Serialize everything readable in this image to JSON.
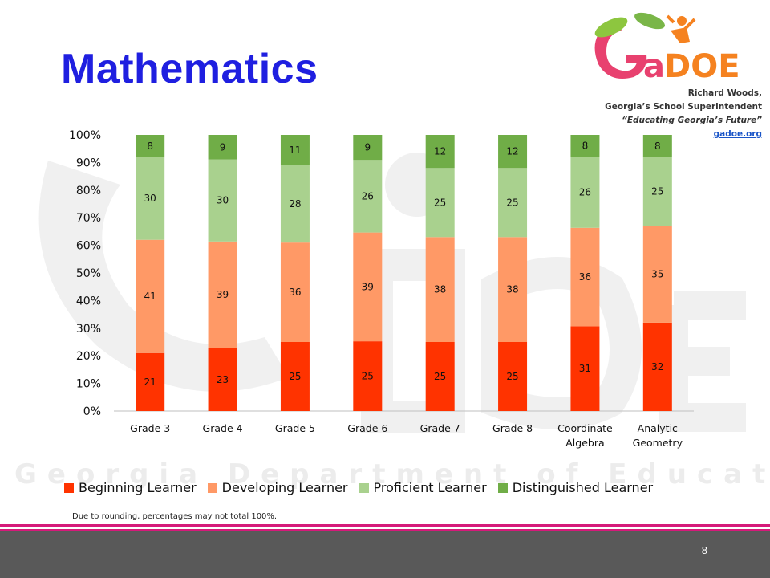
{
  "slide": {
    "title": "Mathematics",
    "slide_number": "8",
    "footnote": "Due to rounding, percentages may not total 100%."
  },
  "logo": {
    "name": "GaDOE",
    "line1": "Richard Woods,",
    "line2": "Georgia’s School Superintendent",
    "line3": "“Educating Georgia’s Future”",
    "link": "gadoe.org"
  },
  "watermark": {
    "text": "Georgia Department of Education"
  },
  "colors": {
    "beginning": "#ff3300",
    "developing": "#ff9966",
    "proficient": "#a9d18e",
    "distinguished": "#70ad47",
    "title": "#1f1fe0",
    "accent_bar": "#d61a7a",
    "footer": "#595959"
  },
  "chart_data": {
    "type": "bar",
    "stacked": true,
    "percent": true,
    "categories": [
      "Grade 3",
      "Grade 4",
      "Grade 5",
      "Grade 6",
      "Grade 7",
      "Grade 8",
      "Coordinate Algebra",
      "Analytic Geometry"
    ],
    "category_lines": [
      [
        "Grade 3"
      ],
      [
        "Grade 4"
      ],
      [
        "Grade 5"
      ],
      [
        "Grade 6"
      ],
      [
        "Grade 7"
      ],
      [
        "Grade 8"
      ],
      [
        "Coordinate",
        "Algebra"
      ],
      [
        "Analytic",
        "Geometry"
      ]
    ],
    "series": [
      {
        "name": "Beginning Learner",
        "color": "#ff3300",
        "values": [
          21,
          23,
          25,
          25,
          25,
          25,
          31,
          32
        ]
      },
      {
        "name": "Developing Learner",
        "color": "#ff9966",
        "values": [
          41,
          39,
          36,
          39,
          38,
          38,
          36,
          35
        ]
      },
      {
        "name": "Proficient Learner",
        "color": "#a9d18e",
        "values": [
          30,
          30,
          28,
          26,
          25,
          25,
          26,
          25
        ]
      },
      {
        "name": "Distinguished Learner",
        "color": "#70ad47",
        "values": [
          8,
          9,
          11,
          9,
          12,
          12,
          8,
          8
        ]
      }
    ],
    "y_ticks": [
      "0%",
      "10%",
      "20%",
      "30%",
      "40%",
      "50%",
      "60%",
      "70%",
      "80%",
      "90%",
      "100%"
    ],
    "ylim": [
      0,
      100
    ],
    "legend_position": "bottom",
    "grid": false
  }
}
